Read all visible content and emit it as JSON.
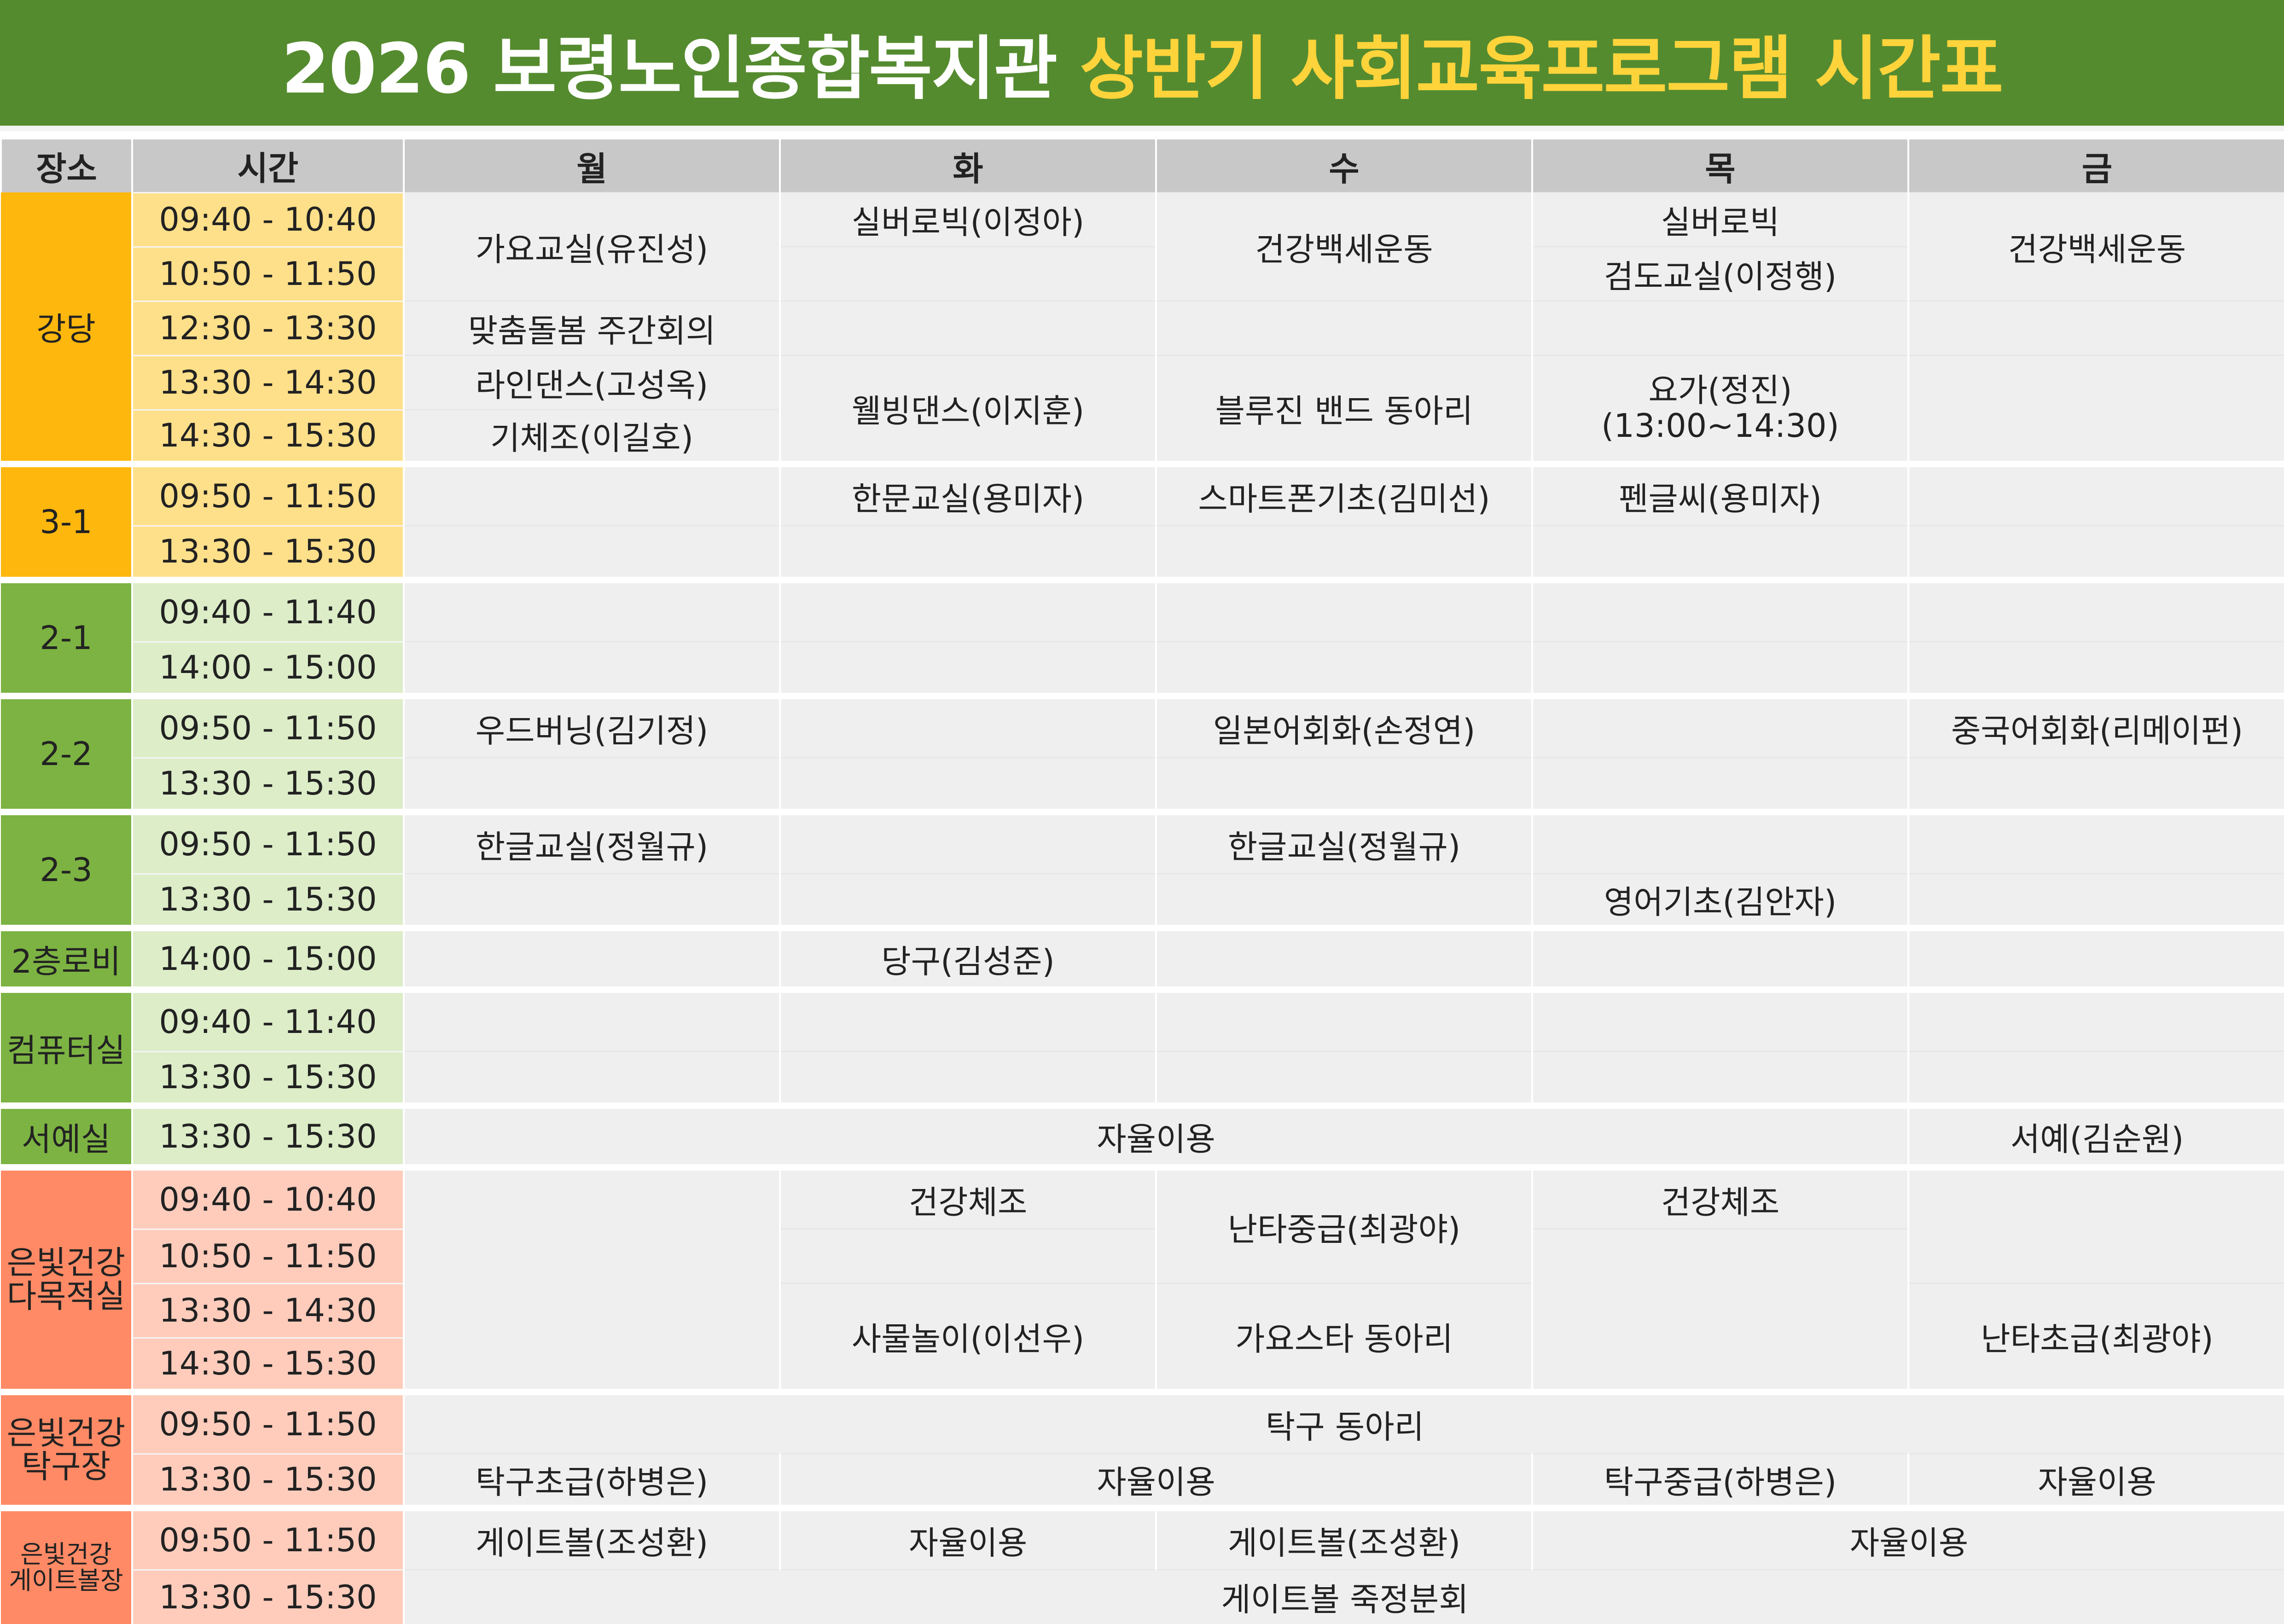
{
  "title": {
    "main": "2026 보령노인종합복지관",
    "highlight": "상반기 사회교육프로그램 시간표"
  },
  "header": {
    "place": "장소",
    "time": "시간",
    "days": [
      "월",
      "화",
      "수",
      "목",
      "금"
    ]
  },
  "colors": {
    "title_bg": "#558b2f",
    "title_highlight": "#ffd43b",
    "auditorium_place": "#fdb70d",
    "auditorium_time": "#ffe08a",
    "classroom_place": "#7cb342",
    "classroom_time": "#dcedc8",
    "silver_place": "#ff8a65",
    "silver_time": "#ffccbc"
  },
  "sections": [
    {
      "place": "강당",
      "times": [
        "09:40 - 10:40",
        "10:50 - 11:50",
        "12:30 - 13:30",
        "13:30 - 14:30",
        "14:30 - 15:30"
      ],
      "cells": {
        "mon_a": "가요교실(유진성)",
        "mon_b": "맞춤돌봄 주간회의",
        "mon_c": "라인댄스(고성옥)",
        "mon_d": "기체조(이길호)",
        "tue_a": "실버로빅(이정아)",
        "tue_b": "웰빙댄스(이지훈)",
        "wed_a": "건강백세운동",
        "wed_b": "블루진 밴드 동아리",
        "thu_a": "실버로빅",
        "thu_b": "검도교실(이정행)",
        "thu_c": "요가(정진)",
        "thu_c2": "(13:00~14:30)",
        "fri_a": "건강백세운동"
      }
    },
    {
      "place": "3-1",
      "times": [
        "09:50 - 11:50",
        "13:30 - 15:30"
      ],
      "cells": {
        "tue_a": "한문교실(용미자)",
        "wed_a": "스마트폰기초(김미선)",
        "thu_a": "펜글씨(용미자)"
      }
    },
    {
      "place": "2-1",
      "times": [
        "09:40 - 11:40",
        "14:00 - 15:00"
      ]
    },
    {
      "place": "2-2",
      "times": [
        "09:50 - 11:50",
        "13:30 - 15:30"
      ],
      "cells": {
        "mon_a": "우드버닝(김기정)",
        "wed_a": "일본어회화(손정연)",
        "fri_a": "중국어회화(리메이펀)"
      }
    },
    {
      "place": "2-3",
      "times": [
        "09:50 - 11:50",
        "13:30 - 15:30"
      ],
      "cells": {
        "mon_a": "한글교실(정월규)",
        "wed_a": "한글교실(정월규)",
        "thu_b": "영어기초(김안자)"
      }
    },
    {
      "place": "2층로비",
      "times": [
        "14:00 - 15:00"
      ],
      "cells": {
        "tue_a": "당구(김성준)"
      }
    },
    {
      "place": "컴퓨터실",
      "times": [
        "09:40 - 11:40",
        "13:30 - 15:30"
      ]
    },
    {
      "place": "서예실",
      "times": [
        "13:30 - 15:30"
      ],
      "cells": {
        "mon_thu": "자율이용",
        "fri_a": "서예(김순원)"
      }
    },
    {
      "place_l1": "은빛건강",
      "place_l2": "다목적실",
      "times": [
        "09:40 - 10:40",
        "10:50 - 11:50",
        "13:30 - 14:30",
        "14:30 - 15:30"
      ],
      "cells": {
        "tue_a": "건강체조",
        "tue_b": "사물놀이(이선우)",
        "wed_a": "난타중급(최광야)",
        "wed_b": "가요스타 동아리",
        "thu_a": "건강체조",
        "fri_b": "난타초급(최광야)"
      }
    },
    {
      "place_l1": "은빛건강",
      "place_l2": "탁구장",
      "times": [
        "09:50 - 11:50",
        "13:30 - 15:30"
      ],
      "cells": {
        "all_a": "탁구 동아리",
        "mon_b": "탁구초급(하병은)",
        "tue_wed_b": "자율이용",
        "thu_b": "탁구중급(하병은)",
        "fri_b": "자율이용"
      }
    },
    {
      "place_l1": "은빛건강",
      "place_l2": "게이트볼장",
      "times": [
        "09:50 - 11:50",
        "13:30 - 15:30"
      ],
      "cells": {
        "mon_a": "게이트볼(조성환)",
        "tue_a": "자율이용",
        "wed_a": "게이트볼(조성환)",
        "thu_fri_a": "자율이용",
        "all_b": "게이트볼 죽정분회"
      }
    }
  ]
}
